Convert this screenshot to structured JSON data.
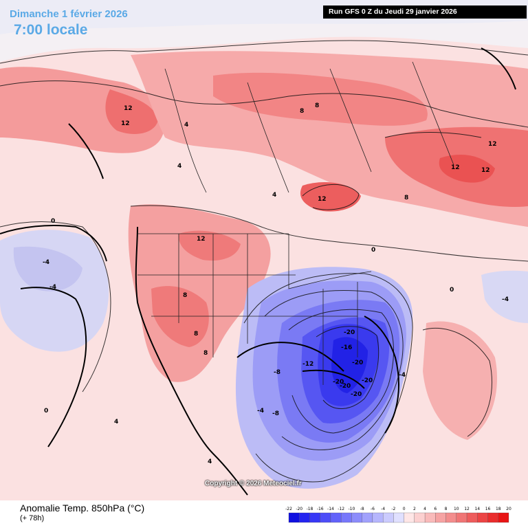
{
  "header": {
    "date_label": "Dimanche 1 février 2026",
    "time_label": "7:00 locale",
    "run_label": "Run GFS 0 Z du Jeudi 29 janvier 2026"
  },
  "footer": {
    "parameter_label": "Anomalie Temp. 850hPa (°C)",
    "lead_label": "(+ 78h)",
    "copyright": "Copyright © 2026 Meteociel.fr"
  },
  "legend": {
    "ticks": [
      "-22",
      "-20",
      "-18",
      "-16",
      "-14",
      "-12",
      "-10",
      "-8",
      "-6",
      "-4",
      "-2",
      "0",
      "2",
      "4",
      "6",
      "8",
      "10",
      "12",
      "14",
      "16",
      "18",
      "20"
    ],
    "colors": [
      "#1010e0",
      "#2424f0",
      "#3838f6",
      "#4d4df8",
      "#6262fa",
      "#7777fb",
      "#8c8cfb",
      "#a1a1fc",
      "#b6b6fd",
      "#cbcbfe",
      "#e0e0ff",
      "#ffe6e6",
      "#fcd0d0",
      "#f9baba",
      "#f6a3a3",
      "#f38d8d",
      "#f07575",
      "#ee5c5c",
      "#ec4444",
      "#ea2c2c",
      "#e81414"
    ]
  },
  "map_labels": [
    {
      "text": "12",
      "region": "alaska"
    },
    {
      "text": "12",
      "region": "alaska-east"
    },
    {
      "text": "12",
      "region": "hudson-bay"
    },
    {
      "text": "12",
      "region": "quebec"
    },
    {
      "text": "12",
      "region": "labrador-1"
    },
    {
      "text": "12",
      "region": "labrador-2"
    },
    {
      "text": "12",
      "region": "montana"
    },
    {
      "text": "8",
      "region": "arctic"
    },
    {
      "text": "8",
      "region": "arctic-2"
    },
    {
      "text": "8",
      "region": "great-plains"
    },
    {
      "text": "8",
      "region": "rockies"
    },
    {
      "text": "8",
      "region": "nevada"
    },
    {
      "text": "8",
      "region": "arizona"
    },
    {
      "text": "4",
      "region": "yukon"
    },
    {
      "text": "4",
      "region": "alberta"
    },
    {
      "text": "4",
      "region": "manitoba"
    },
    {
      "text": "4",
      "region": "mexico"
    },
    {
      "text": "4",
      "region": "mexico-west"
    },
    {
      "text": "0",
      "region": "pacific"
    },
    {
      "text": "0",
      "region": "hawaii"
    },
    {
      "text": "0",
      "region": "atlantic"
    },
    {
      "text": "0",
      "region": "ontario"
    },
    {
      "text": "-4",
      "region": "pacific-west"
    },
    {
      "text": "-4",
      "region": "pacific-west-2"
    },
    {
      "text": "-4",
      "region": "atlantic-east"
    },
    {
      "text": "-4",
      "region": "texas"
    },
    {
      "text": "-4",
      "region": "gulf"
    },
    {
      "text": "-8",
      "region": "oklahoma"
    },
    {
      "text": "-8",
      "region": "gulf-mexico"
    },
    {
      "text": "-12",
      "region": "arkansas"
    },
    {
      "text": "-16",
      "region": "tennessee"
    },
    {
      "text": "-20",
      "region": "kentucky"
    },
    {
      "text": "-20",
      "region": "georgia"
    },
    {
      "text": "-20",
      "region": "alabama"
    },
    {
      "text": "-20",
      "region": "florida"
    },
    {
      "text": "-20",
      "region": "carolina"
    },
    {
      "text": "-20",
      "region": "florida-south"
    }
  ]
}
